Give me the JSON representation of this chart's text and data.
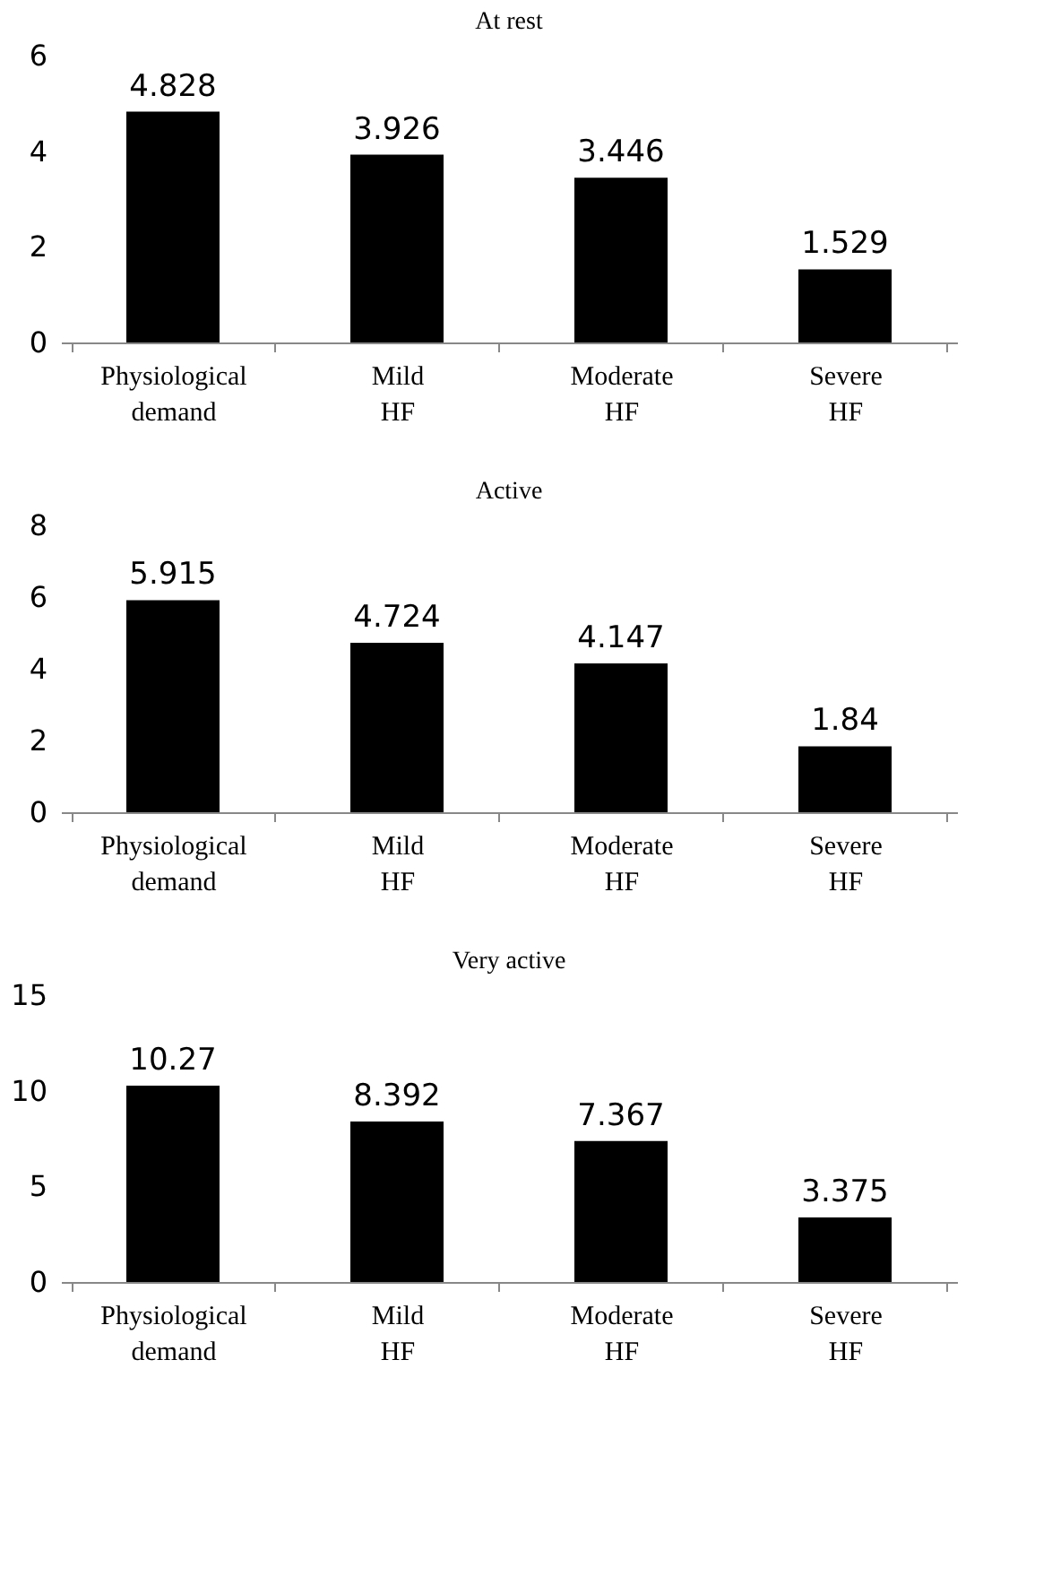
{
  "chart_data": [
    {
      "type": "bar",
      "title": "At rest",
      "categories": [
        "Physiological demand",
        "Mild HF",
        "Moderate HF",
        "Severe HF"
      ],
      "values": [
        4.828,
        3.926,
        3.446,
        1.529
      ],
      "color": "#000000",
      "ylim": [
        0,
        6
      ],
      "yticks": [
        0,
        2,
        4,
        6
      ],
      "data_labels": true,
      "grid": false
    },
    {
      "type": "bar",
      "title": "Active",
      "categories": [
        "Physiological demand",
        "Mild HF",
        "Moderate HF",
        "Severe HF"
      ],
      "values": [
        5.915,
        4.724,
        4.147,
        1.84
      ],
      "color": "#000000",
      "ylim": [
        0,
        8
      ],
      "yticks": [
        0,
        2,
        4,
        6,
        8
      ],
      "data_labels": true,
      "grid": false
    },
    {
      "type": "bar",
      "title": "Very active",
      "categories": [
        "Physiological demand",
        "Mild HF",
        "Moderate HF",
        "Severe HF"
      ],
      "values": [
        10.27,
        8.392,
        7.367,
        3.375
      ],
      "color": "#000000",
      "ylim": [
        0,
        15
      ],
      "yticks": [
        0,
        5,
        10,
        15
      ],
      "data_labels": true,
      "grid": false
    }
  ]
}
